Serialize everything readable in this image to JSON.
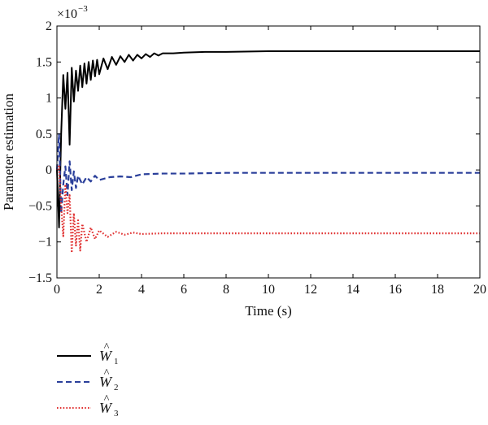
{
  "chart_data": {
    "type": "line",
    "xlabel": "Time (s)",
    "ylabel": "Parameter estimation",
    "y_multiplier": {
      "base": "×10",
      "exponent": "−3"
    },
    "xlim": [
      0,
      20
    ],
    "ylim": [
      -1.5,
      2
    ],
    "x_ticks": [
      0,
      2,
      4,
      6,
      8,
      10,
      12,
      14,
      16,
      18,
      20
    ],
    "x_tick_labels": [
      "0",
      "2",
      "4",
      "6",
      "8",
      "10",
      "12",
      "14",
      "16",
      "18",
      "20"
    ],
    "y_ticks": [
      -1.5,
      -1,
      -0.5,
      0,
      0.5,
      1,
      1.5,
      2
    ],
    "y_tick_labels": [
      "−1.5",
      "−1",
      "−0.5",
      "0",
      "0.5",
      "1",
      "1.5",
      "2"
    ],
    "grid": false,
    "legend_position": "below-left",
    "series": [
      {
        "name": "Ŵ1",
        "hat_base": "W",
        "subscript": "1",
        "color": "#000000",
        "dash": "solid",
        "x": [
          0,
          0.1,
          0.2,
          0.3,
          0.4,
          0.5,
          0.6,
          0.7,
          0.8,
          0.9,
          1.0,
          1.1,
          1.2,
          1.3,
          1.4,
          1.5,
          1.6,
          1.7,
          1.8,
          1.9,
          2.0,
          2.2,
          2.4,
          2.6,
          2.8,
          3.0,
          3.2,
          3.4,
          3.6,
          3.8,
          4.0,
          4.2,
          4.4,
          4.6,
          4.8,
          5.0,
          5.5,
          6.0,
          7.0,
          8.0,
          10.0,
          12.0,
          14.0,
          16.0,
          18.0,
          20.0
        ],
        "y": [
          0,
          -0.8,
          0.5,
          1.32,
          0.85,
          1.35,
          0.35,
          1.42,
          0.95,
          1.38,
          1.1,
          1.45,
          1.15,
          1.48,
          1.2,
          1.5,
          1.25,
          1.52,
          1.3,
          1.53,
          1.33,
          1.55,
          1.4,
          1.57,
          1.46,
          1.58,
          1.5,
          1.6,
          1.52,
          1.6,
          1.55,
          1.61,
          1.57,
          1.62,
          1.59,
          1.62,
          1.62,
          1.63,
          1.64,
          1.64,
          1.65,
          1.65,
          1.65,
          1.65,
          1.65,
          1.65
        ]
      },
      {
        "name": "Ŵ2",
        "hat_base": "W",
        "subscript": "2",
        "color": "#2a3f9a",
        "dash": "dashed",
        "x": [
          0,
          0.1,
          0.2,
          0.3,
          0.4,
          0.5,
          0.6,
          0.7,
          0.8,
          0.9,
          1.0,
          1.2,
          1.4,
          1.6,
          1.8,
          2.0,
          2.5,
          3.0,
          3.5,
          4.0,
          5.0,
          6.0,
          8.0,
          10.0,
          14.0,
          20.0
        ],
        "y": [
          0,
          0.5,
          -0.6,
          -0.2,
          0.05,
          -0.35,
          0.12,
          -0.28,
          -0.02,
          -0.25,
          -0.08,
          -0.2,
          -0.1,
          -0.16,
          -0.08,
          -0.14,
          -0.1,
          -0.09,
          -0.1,
          -0.06,
          -0.05,
          -0.05,
          -0.04,
          -0.04,
          -0.04,
          -0.04
        ]
      },
      {
        "name": "Ŵ3",
        "hat_base": "W",
        "subscript": "3",
        "color": "#e03030",
        "dash": "dotted",
        "x": [
          0,
          0.1,
          0.2,
          0.3,
          0.4,
          0.5,
          0.6,
          0.7,
          0.8,
          0.9,
          1.0,
          1.1,
          1.2,
          1.4,
          1.6,
          1.8,
          2.0,
          2.4,
          2.8,
          3.2,
          3.6,
          4.0,
          5.0,
          6.0,
          8.0,
          10.0,
          14.0,
          20.0
        ],
        "y": [
          0,
          0.05,
          -0.5,
          -0.92,
          -0.2,
          -0.6,
          -0.35,
          -1.15,
          -0.6,
          -1.05,
          -0.7,
          -1.12,
          -0.75,
          -1.0,
          -0.8,
          -0.96,
          -0.84,
          -0.93,
          -0.86,
          -0.9,
          -0.87,
          -0.89,
          -0.88,
          -0.88,
          -0.88,
          -0.88,
          -0.88,
          -0.88
        ]
      }
    ]
  }
}
